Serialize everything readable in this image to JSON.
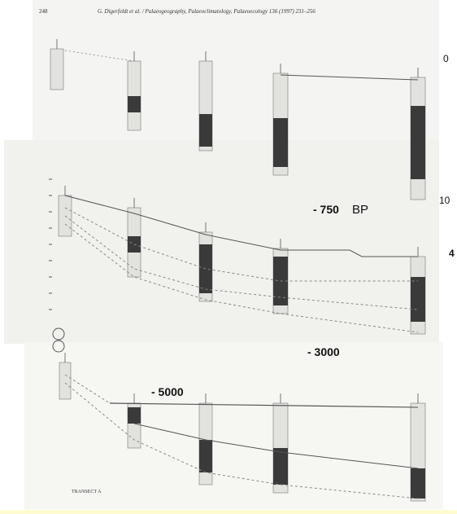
{
  "header": {
    "page": "248",
    "citation": "G. Digerfeldt et al. / Palaeogeography, Palaeoclimatology, Palaeoecology 136 (1997) 231–256"
  },
  "labels": {
    "depth_top": "0",
    "depth_mid": "10",
    "depth_side": "4",
    "age_750": "- 750",
    "age_750_unit": "BP",
    "age_3000": "- 3000",
    "age_5000": "- 5000",
    "transect": "TRANSECT A"
  }
}
